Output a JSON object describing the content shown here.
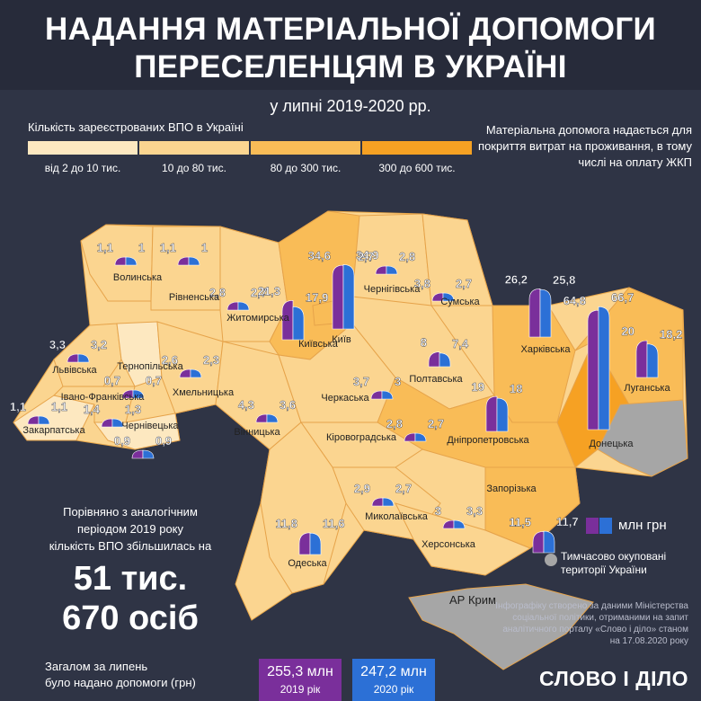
{
  "header": {
    "title_line1": "НАДАННЯ МАТЕРІАЛЬНОЇ ДОПОМОГИ",
    "title_line2": "ПЕРЕСЕЛЕНЦЯМ В УКРАЇНІ",
    "subtitle": "у липні 2019-2020 рр."
  },
  "legend": {
    "title": "Кількість зареєстрованих ВПО в Україні",
    "bins": [
      {
        "label": "від 2 до 10 тис.",
        "color": "#fde8c0"
      },
      {
        "label": "10 до 80 тис.",
        "color": "#fbd590"
      },
      {
        "label": "80 до 300 тис.",
        "color": "#f9bc57"
      },
      {
        "label": "300 до 600 тис.",
        "color": "#f6a123"
      }
    ],
    "series": [
      {
        "label": "млн грн",
        "color_2019": "#7a2f9b",
        "color_2020": "#2c70d6"
      }
    ],
    "occupied_label_line1": "Тимчасово окуповані",
    "occupied_label_line2": "території України"
  },
  "note_top": "Матеріальна допомога надається для покриття витрат на проживання, в тому числі на оплату ЖКП",
  "comparison": {
    "text_line1": "Порівняно з аналогічним",
    "text_line2": "періодом 2019 року",
    "text_line3": "кількість ВПО збільшилась на",
    "number_line1": "51 тис.",
    "number_line2": "670 осіб"
  },
  "totals": {
    "caption_line1": "Загалом за липень",
    "caption_line2": "було надано допомоги (грн)",
    "y2019_value": "255,3 млн",
    "y2019_label": "2019 рік",
    "y2020_value": "247,2 млн",
    "y2020_label": "2020 рік"
  },
  "crimea_label": "АР Крим",
  "credits": "Інфографіку створено за даними Міністерства соціальної політики, отриманими на запит аналітичного порталу «Слово і діло» станом на 17.08.2020 року",
  "logo": "СЛОВО І ДІЛО",
  "colors": {
    "background": "#2f3445",
    "color_2019": "#7a2f9b",
    "color_2020": "#2c70d6",
    "occupied": "#a6a6a6"
  },
  "chart_data": {
    "type": "bar",
    "title": "НАДАННЯ МАТЕРІАЛЬНОЇ ДОПОМОГИ ПЕРЕСЕЛЕНЦЯМ В УКРАЇНІ",
    "subtitle": "у липні 2019-2020 рр.",
    "unit": "млн грн",
    "categories": [
      "Волинська",
      "Рівненська",
      "Житомирська",
      "Київська",
      "Київ",
      "Чернігівська",
      "Сумська",
      "Харківська",
      "Донецька",
      "Луганська",
      "Львівська",
      "Тернопільська",
      "Хмельницька",
      "Вінницька",
      "Черкаська",
      "Полтавська",
      "Дніпропетровська",
      "Закарпатська",
      "Івано-Франківська",
      "Чернівецька",
      "Кіровоградська",
      "Миколаївська",
      "Запорізька",
      "Одеська",
      "Херсонська"
    ],
    "series": [
      {
        "name": "2019",
        "values": [
          1.1,
          1.1,
          2.8,
          21.3,
          34.6,
          2.7,
          3.8,
          26.2,
          64.8,
          20,
          3.3,
          0.7,
          2.6,
          4.3,
          3.7,
          8,
          19,
          1.1,
          1.4,
          0.9,
          2.8,
          2.9,
          11.5,
          11.8,
          3
        ]
      },
      {
        "name": "2020",
        "values": [
          1,
          1,
          2.7,
          17.9,
          34.9,
          2.8,
          2.7,
          25.8,
          66.7,
          18.2,
          3.2,
          0.7,
          2.3,
          3.6,
          3,
          7.4,
          18,
          1.1,
          1.3,
          0.9,
          2.7,
          2.7,
          11.7,
          11.6,
          3.3
        ]
      }
    ],
    "value_labels_2019": [
      "1,1",
      "1,1",
      "2,8",
      "21,3",
      "34,6",
      "2,7",
      "3,8",
      "26,2",
      "64,8",
      "20",
      "3,3",
      "0,7",
      "2,6",
      "4,3",
      "3,7",
      "8",
      "19",
      "1,1",
      "1,4",
      "0,9",
      "2,8",
      "2,9",
      "11,5",
      "11,8",
      "3"
    ],
    "value_labels_2020": [
      "1",
      "1",
      "2,7",
      "17,9",
      "34,9",
      "2,8",
      "2,7",
      "25,8",
      "66,7",
      "18,2",
      "3,2",
      "0,7",
      "2,3",
      "3,6",
      "3",
      "7,4",
      "18",
      "1,1",
      "1,3",
      "0,9",
      "2,7",
      "2,7",
      "11,7",
      "11,6",
      "3,3"
    ],
    "idp_bin": [
      "10 до 80 тис.",
      "10 до 80 тис.",
      "10 до 80 тис.",
      "80 до 300 тис.",
      "80 до 300 тис.",
      "10 до 80 тис.",
      "10 до 80 тис.",
      "80 до 300 тис.",
      "300 до 600 тис.",
      "80 до 300 тис.",
      "10 до 80 тис.",
      "від 2 до 10 тис.",
      "10 до 80 тис.",
      "10 до 80 тис.",
      "10 до 80 тис.",
      "10 до 80 тис.",
      "80 до 300 тис.",
      "від 2 до 10 тис.",
      "10 до 80 тис.",
      "від 2 до 10 тис.",
      "10 до 80 тис.",
      "10 до 80 тис.",
      "80 до 300 тис.",
      "10 до 80 тис.",
      "10 до 80 тис."
    ]
  }
}
